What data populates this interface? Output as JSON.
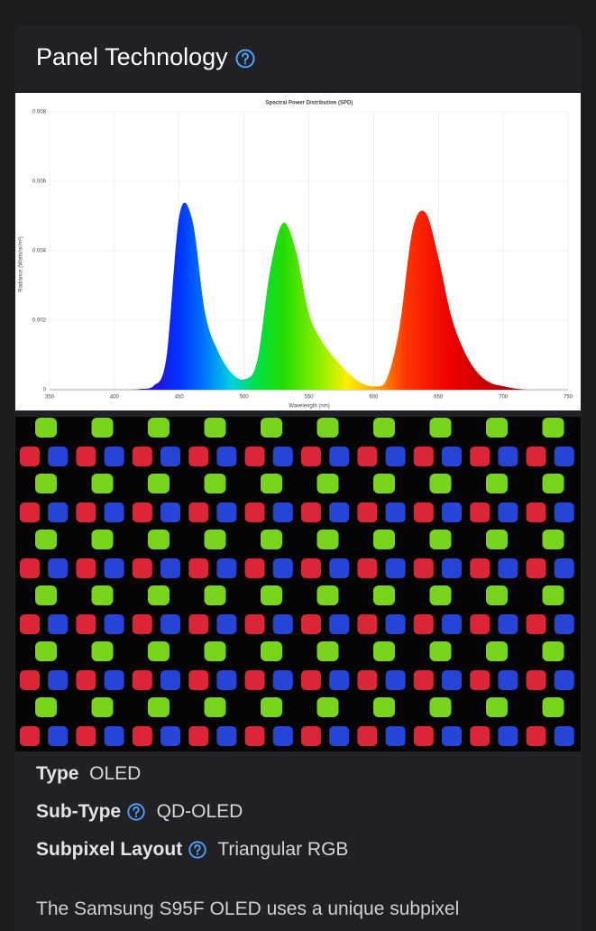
{
  "header": {
    "title": "Panel Technology"
  },
  "spd_chart": {
    "type": "area",
    "title": "Spectral Power Distribution (SPD)",
    "x_label": "Wavelength (nm)",
    "y_label": "Radiance (Watts/sr/m²)",
    "x": [
      350,
      360,
      370,
      380,
      390,
      400,
      410,
      420,
      430,
      440,
      450,
      460,
      470,
      480,
      490,
      500,
      510,
      520,
      530,
      540,
      550,
      560,
      570,
      580,
      590,
      600,
      610,
      620,
      630,
      640,
      650,
      660,
      670,
      680,
      690,
      700,
      710,
      720,
      730,
      740,
      750
    ],
    "values": [
      0,
      0,
      0,
      0,
      0,
      0,
      0,
      2e-05,
      0.0001,
      0.0009,
      0.005,
      0.0049,
      0.0022,
      0.0011,
      0.0005,
      0.0003,
      0.0008,
      0.0034,
      0.0048,
      0.004,
      0.0022,
      0.0014,
      0.0009,
      0.0005,
      0.0002,
      0.0001,
      0.0003,
      0.0018,
      0.0046,
      0.0051,
      0.0038,
      0.0021,
      0.0011,
      0.0005,
      0.0002,
      0.0001,
      3e-05,
      0,
      0,
      0,
      0
    ],
    "xlim": [
      350,
      750
    ],
    "xticks": [
      350,
      400,
      450,
      500,
      550,
      600,
      650,
      700,
      750
    ],
    "ylim": [
      0,
      0.008
    ],
    "yticks": [
      0,
      0.002,
      0.004,
      0.006,
      0.008
    ],
    "grid": true
  },
  "specs": [
    {
      "label": "Type",
      "value": "OLED"
    },
    {
      "label": "Sub-Type",
      "value": "QD-OLED"
    },
    {
      "label": "Subpixel Layout",
      "value": "Triangular RGB"
    }
  ],
  "description": "The Samsung S95F OLED uses a unique subpixel"
}
